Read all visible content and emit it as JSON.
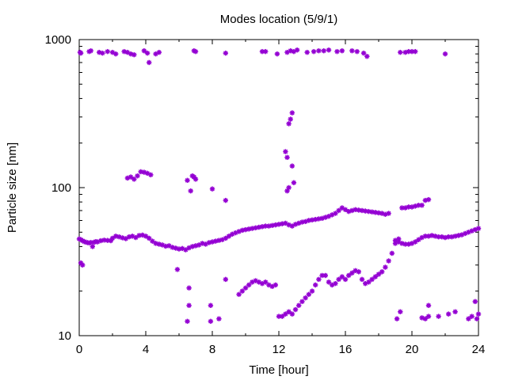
{
  "chart_data": {
    "type": "scatter",
    "title": "Modes location (5/9/1)",
    "xlabel": "Time [hour]",
    "ylabel": "Particle size [nm]",
    "xlim": [
      0,
      24
    ],
    "ylim": [
      10,
      1000
    ],
    "yscale": "log",
    "xticks": [
      "0",
      "4",
      "8",
      "12",
      "16",
      "20",
      "24"
    ],
    "yticks": [
      "10",
      "100",
      "1000"
    ],
    "grid": false,
    "legend": "none",
    "marker_color": "#9400d3",
    "series": [
      {
        "points": [
          [
            0.0,
            45.0
          ],
          [
            0.1,
            44.5
          ],
          [
            0.2,
            43.8
          ],
          [
            0.3,
            43.2
          ],
          [
            0.4,
            42.8
          ],
          [
            0.5,
            42.5
          ],
          [
            0.6,
            42.3
          ],
          [
            0.7,
            42.6
          ],
          [
            0.8,
            40.0
          ],
          [
            0.9,
            42.8
          ],
          [
            1.0,
            43.2
          ],
          [
            1.1,
            43.0
          ],
          [
            1.3,
            43.8
          ],
          [
            1.5,
            44.2
          ],
          [
            1.7,
            44.0
          ],
          [
            1.9,
            43.8
          ],
          [
            2.0,
            45.5
          ],
          [
            2.2,
            47.0
          ],
          [
            2.4,
            46.5
          ],
          [
            2.6,
            45.8
          ],
          [
            2.8,
            45.2
          ],
          [
            3.0,
            46.5
          ],
          [
            3.2,
            47.0
          ],
          [
            3.4,
            46.0
          ],
          [
            3.6,
            47.5
          ],
          [
            3.8,
            47.8
          ],
          [
            4.0,
            47.0
          ],
          [
            4.2,
            45.5
          ],
          [
            4.4,
            43.5
          ],
          [
            4.6,
            42.0
          ],
          [
            4.8,
            41.5
          ],
          [
            5.0,
            41.0
          ],
          [
            5.2,
            40.2
          ],
          [
            5.4,
            40.5
          ],
          [
            5.6,
            39.5
          ],
          [
            5.8,
            39.0
          ],
          [
            6.0,
            38.5
          ],
          [
            6.2,
            38.8
          ],
          [
            6.4,
            38.0
          ],
          [
            6.6,
            39.2
          ],
          [
            6.8,
            40.0
          ],
          [
            7.0,
            40.5
          ],
          [
            7.2,
            41.0
          ],
          [
            7.4,
            42.0
          ],
          [
            7.6,
            41.5
          ],
          [
            7.8,
            42.5
          ],
          [
            8.0,
            43.0
          ],
          [
            8.2,
            43.5
          ],
          [
            8.4,
            44.0
          ],
          [
            8.6,
            44.5
          ],
          [
            8.8,
            45.5
          ],
          [
            9.0,
            47.0
          ],
          [
            9.2,
            48.5
          ],
          [
            9.4,
            49.5
          ],
          [
            9.6,
            50.5
          ],
          [
            9.8,
            51.5
          ],
          [
            10.0,
            52.0
          ],
          [
            10.2,
            52.5
          ],
          [
            10.4,
            53.0
          ],
          [
            10.6,
            53.5
          ],
          [
            10.8,
            54.0
          ],
          [
            11.0,
            54.5
          ],
          [
            11.2,
            55.0
          ],
          [
            11.4,
            55.0
          ],
          [
            11.6,
            55.5
          ],
          [
            11.8,
            56.0
          ],
          [
            12.0,
            56.5
          ],
          [
            12.2,
            57.0
          ],
          [
            12.4,
            57.5
          ],
          [
            12.6,
            56.0
          ],
          [
            12.8,
            55.0
          ],
          [
            13.0,
            56.5
          ],
          [
            13.2,
            57.5
          ],
          [
            13.4,
            58.5
          ],
          [
            13.6,
            59.0
          ],
          [
            13.8,
            60.0
          ],
          [
            14.0,
            60.5
          ],
          [
            14.2,
            61.0
          ],
          [
            14.4,
            61.5
          ],
          [
            14.6,
            62.0
          ],
          [
            14.8,
            63.0
          ],
          [
            15.0,
            64.0
          ],
          [
            15.2,
            65.5
          ],
          [
            15.4,
            67.0
          ],
          [
            15.6,
            70.0
          ],
          [
            15.8,
            73.0
          ],
          [
            16.0,
            71.0
          ],
          [
            16.2,
            69.0
          ],
          [
            16.4,
            70.0
          ],
          [
            16.6,
            71.0
          ],
          [
            16.8,
            70.5
          ],
          [
            17.0,
            70.0
          ],
          [
            17.2,
            69.5
          ],
          [
            17.4,
            69.0
          ],
          [
            17.6,
            68.5
          ],
          [
            17.8,
            68.0
          ],
          [
            18.0,
            67.5
          ],
          [
            18.2,
            67.0
          ],
          [
            18.4,
            66.0
          ],
          [
            18.6,
            67.0
          ],
          [
            19.0,
            44.0
          ],
          [
            19.2,
            43.0
          ],
          [
            19.4,
            42.0
          ],
          [
            19.6,
            41.5
          ],
          [
            19.8,
            41.5
          ],
          [
            20.0,
            42.0
          ],
          [
            20.2,
            43.0
          ],
          [
            20.4,
            44.5
          ],
          [
            20.6,
            46.0
          ],
          [
            20.8,
            47.0
          ],
          [
            21.0,
            47.0
          ],
          [
            21.2,
            47.5
          ],
          [
            21.4,
            47.0
          ],
          [
            21.6,
            46.5
          ],
          [
            21.8,
            46.5
          ],
          [
            22.0,
            46.0
          ],
          [
            22.2,
            46.5
          ],
          [
            22.4,
            46.5
          ],
          [
            22.6,
            47.0
          ],
          [
            22.8,
            47.5
          ],
          [
            23.0,
            48.0
          ],
          [
            23.2,
            49.0
          ],
          [
            23.4,
            50.0
          ],
          [
            23.6,
            51.0
          ],
          [
            23.8,
            52.0
          ],
          [
            24.0,
            53.0
          ],
          [
            0.05,
            820
          ],
          [
            0.1,
            810
          ],
          [
            0.6,
            830
          ],
          [
            0.7,
            840
          ],
          [
            1.2,
            820
          ],
          [
            1.4,
            810
          ],
          [
            1.7,
            830
          ],
          [
            2.0,
            820
          ],
          [
            2.2,
            800
          ],
          [
            2.7,
            830
          ],
          [
            2.9,
            820
          ],
          [
            3.1,
            800
          ],
          [
            3.3,
            790
          ],
          [
            3.9,
            840
          ],
          [
            4.1,
            810
          ],
          [
            4.2,
            700
          ],
          [
            4.6,
            800
          ],
          [
            4.8,
            820
          ],
          [
            6.9,
            840
          ],
          [
            7.0,
            830
          ],
          [
            8.8,
            810
          ],
          [
            11.0,
            830
          ],
          [
            11.2,
            830
          ],
          [
            11.9,
            800
          ],
          [
            12.5,
            820
          ],
          [
            12.7,
            840
          ],
          [
            12.9,
            830
          ],
          [
            13.1,
            850
          ],
          [
            13.7,
            820
          ],
          [
            14.1,
            830
          ],
          [
            14.4,
            840
          ],
          [
            14.7,
            840
          ],
          [
            15.0,
            850
          ],
          [
            15.5,
            830
          ],
          [
            15.8,
            840
          ],
          [
            16.4,
            840
          ],
          [
            16.7,
            830
          ],
          [
            17.1,
            810
          ],
          [
            17.3,
            770
          ],
          [
            19.3,
            820
          ],
          [
            19.6,
            820
          ],
          [
            19.8,
            830
          ],
          [
            20.0,
            830
          ],
          [
            20.2,
            830
          ],
          [
            22.0,
            800
          ],
          [
            2.9,
            116
          ],
          [
            3.1,
            118
          ],
          [
            3.3,
            114
          ],
          [
            3.5,
            120
          ],
          [
            3.7,
            128
          ],
          [
            3.9,
            127
          ],
          [
            4.1,
            125
          ],
          [
            4.3,
            122
          ],
          [
            6.5,
            112
          ],
          [
            6.7,
            95
          ],
          [
            6.8,
            120
          ],
          [
            6.9,
            118
          ],
          [
            7.0,
            114
          ],
          [
            8.0,
            98
          ],
          [
            8.8,
            82
          ],
          [
            12.4,
            175
          ],
          [
            12.5,
            160
          ],
          [
            12.6,
            270
          ],
          [
            12.7,
            290
          ],
          [
            12.8,
            320
          ],
          [
            12.9,
            108
          ],
          [
            12.5,
            95
          ],
          [
            12.6,
            100
          ],
          [
            12.8,
            140
          ],
          [
            19.4,
            73
          ],
          [
            19.6,
            73
          ],
          [
            19.8,
            74
          ],
          [
            20.0,
            74
          ],
          [
            20.2,
            75
          ],
          [
            20.4,
            76
          ],
          [
            20.6,
            76
          ],
          [
            20.8,
            82
          ],
          [
            21.0,
            83
          ],
          [
            0.1,
            31
          ],
          [
            0.2,
            30
          ],
          [
            5.9,
            28
          ],
          [
            6.6,
            21
          ],
          [
            6.5,
            12.5
          ],
          [
            6.6,
            16
          ],
          [
            7.9,
            16
          ],
          [
            7.9,
            12.5
          ],
          [
            8.4,
            13
          ],
          [
            8.8,
            24
          ],
          [
            9.6,
            19
          ],
          [
            9.8,
            20
          ],
          [
            10.0,
            21
          ],
          [
            10.2,
            22
          ],
          [
            10.4,
            23
          ],
          [
            10.6,
            23.5
          ],
          [
            10.8,
            23
          ],
          [
            11.0,
            22.5
          ],
          [
            11.2,
            23
          ],
          [
            11.4,
            22
          ],
          [
            11.6,
            21.5
          ],
          [
            11.8,
            22
          ],
          [
            12.0,
            13.5
          ],
          [
            12.2,
            13.5
          ],
          [
            12.4,
            14
          ],
          [
            12.6,
            14.5
          ],
          [
            12.8,
            14
          ],
          [
            13.0,
            15
          ],
          [
            13.2,
            16
          ],
          [
            13.4,
            17
          ],
          [
            13.6,
            18
          ],
          [
            13.8,
            19
          ],
          [
            14.0,
            20
          ],
          [
            14.2,
            22
          ],
          [
            14.4,
            24
          ],
          [
            14.6,
            25.5
          ],
          [
            14.8,
            25.5
          ],
          [
            15.0,
            23
          ],
          [
            15.2,
            22
          ],
          [
            15.4,
            22.5
          ],
          [
            15.6,
            24
          ],
          [
            15.8,
            25
          ],
          [
            16.0,
            24
          ],
          [
            16.2,
            25.5
          ],
          [
            16.4,
            26.5
          ],
          [
            16.6,
            27.5
          ],
          [
            16.8,
            27
          ],
          [
            17.0,
            24
          ],
          [
            17.2,
            22.5
          ],
          [
            17.4,
            23
          ],
          [
            17.6,
            24
          ],
          [
            17.8,
            25
          ],
          [
            18.0,
            26
          ],
          [
            18.2,
            27
          ],
          [
            18.4,
            29
          ],
          [
            18.6,
            32
          ],
          [
            18.8,
            36
          ],
          [
            19.0,
            42
          ],
          [
            19.2,
            45
          ],
          [
            19.1,
            13
          ],
          [
            19.3,
            14.5
          ],
          [
            20.6,
            13.2
          ],
          [
            20.8,
            13.0
          ],
          [
            21.0,
            13.5
          ],
          [
            21.0,
            16
          ],
          [
            21.6,
            13.5
          ],
          [
            22.2,
            14
          ],
          [
            22.6,
            14.5
          ],
          [
            23.4,
            13
          ],
          [
            23.6,
            13.5
          ],
          [
            23.8,
            17
          ],
          [
            23.9,
            13
          ],
          [
            24.0,
            14
          ]
        ]
      }
    ]
  }
}
